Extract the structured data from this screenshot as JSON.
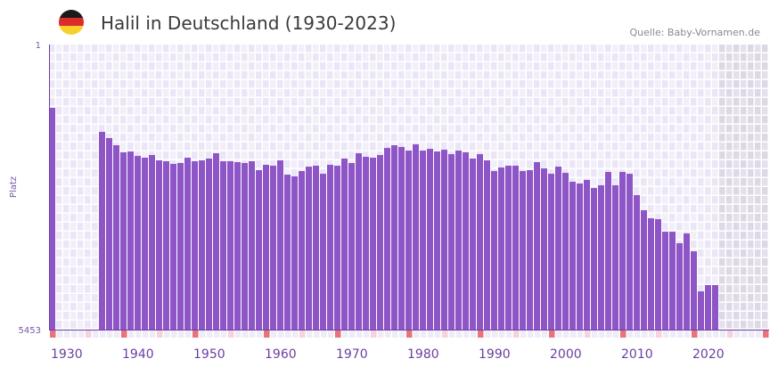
{
  "header": {
    "title": "Halil in Deutschland (1930-2023)",
    "source": "Quelle: Baby-Vornamen.de",
    "flag_icon": "germany-flag-icon"
  },
  "colors": {
    "bar": "#8e55c7",
    "axis": "#6a3fa0",
    "decade_marker": "#e8737a",
    "half_decade_marker": "#f5d3dd",
    "future_shade": "#e2deec"
  },
  "chart_data": {
    "type": "bar",
    "title": "Halil in Deutschland (1930-2023)",
    "xlabel": "",
    "ylabel": "Platz",
    "y_axis_inverted": true,
    "ylim": [
      1,
      5453
    ],
    "yticks": [
      "1",
      "5453"
    ],
    "xlim": [
      1930,
      2030
    ],
    "xticks": [
      "1930",
      "1940",
      "1950",
      "1960",
      "1970",
      "1980",
      "1990",
      "2000",
      "2010",
      "2020"
    ],
    "grid": true,
    "future_from_year": 2024,
    "x": [
      1930,
      1931,
      1932,
      1933,
      1934,
      1935,
      1936,
      1937,
      1938,
      1939,
      1940,
      1941,
      1942,
      1943,
      1944,
      1945,
      1946,
      1947,
      1948,
      1949,
      1950,
      1951,
      1952,
      1953,
      1954,
      1955,
      1956,
      1957,
      1958,
      1959,
      1960,
      1961,
      1962,
      1963,
      1964,
      1965,
      1966,
      1967,
      1968,
      1969,
      1970,
      1971,
      1972,
      1973,
      1974,
      1975,
      1976,
      1977,
      1978,
      1979,
      1980,
      1981,
      1982,
      1983,
      1984,
      1985,
      1986,
      1987,
      1988,
      1989,
      1990,
      1991,
      1992,
      1993,
      1994,
      1995,
      1996,
      1997,
      1998,
      1999,
      2000,
      2001,
      2002,
      2003,
      2004,
      2005,
      2006,
      2007,
      2008,
      2009,
      2010,
      2011,
      2012,
      2013,
      2014,
      2015,
      2016,
      2017,
      2018,
      2019,
      2020,
      2021,
      2022,
      2023
    ],
    "values": [
      1211,
      null,
      null,
      null,
      null,
      null,
      null,
      1671,
      1790,
      1927,
      2063,
      2046,
      2131,
      2165,
      2114,
      2216,
      2233,
      2284,
      2267,
      2165,
      2233,
      2216,
      2182,
      2080,
      2233,
      2233,
      2250,
      2267,
      2233,
      2404,
      2301,
      2318,
      2216,
      2489,
      2523,
      2421,
      2336,
      2318,
      2472,
      2301,
      2318,
      2182,
      2267,
      2080,
      2148,
      2165,
      2114,
      1978,
      1927,
      1961,
      2029,
      1910,
      2029,
      1995,
      2046,
      2012,
      2097,
      2029,
      2063,
      2182,
      2097,
      2216,
      2421,
      2353,
      2318,
      2318,
      2421,
      2404,
      2250,
      2370,
      2472,
      2336,
      2455,
      2625,
      2659,
      2591,
      2745,
      2693,
      2438,
      2693,
      2438,
      2472,
      2881,
      3170,
      3324,
      3341,
      3580,
      3580,
      3801,
      3614,
      3955,
      4722,
      4602,
      4602
    ]
  }
}
